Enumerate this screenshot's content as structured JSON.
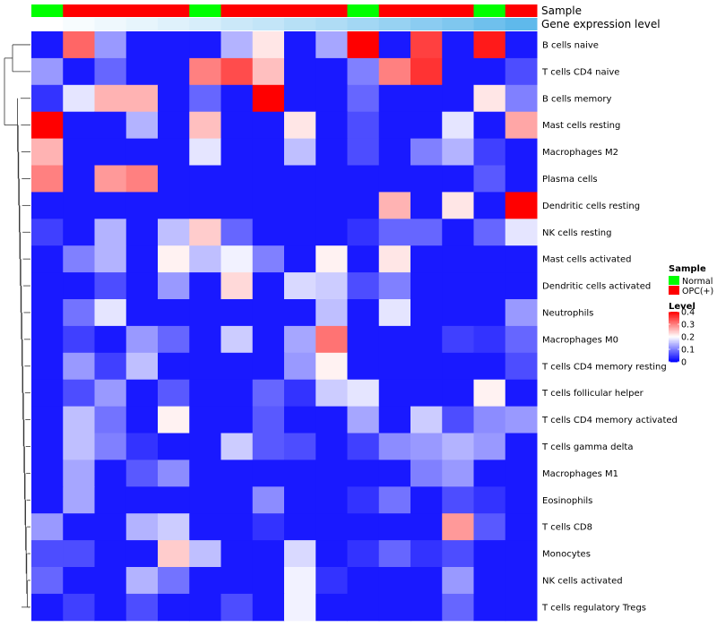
{
  "chart_data": {
    "type": "heatmap",
    "rows": [
      "B cells naive",
      "T cells CD4 naive",
      "B cells memory",
      "Mast cells resting",
      "Macrophages M2",
      "Plasma cells",
      "Dendritic cells resting",
      "NK cells resting",
      "Mast cells activated",
      "Dendritic cells activated",
      "Neutrophils",
      "Macrophages M0",
      "T cells CD4 memory resting",
      "T cells follicular helper",
      "T cells CD4 memory activated",
      "T cells gamma delta",
      "Macrophages M1",
      "Eosinophils",
      "T cells CD8",
      "Monocytes",
      "NK cells activated",
      "T cells regulatory  Tregs"
    ],
    "column_annotations": {
      "Sample": [
        "Normal",
        "OPC(+)",
        "OPC(+)",
        "OPC(+)",
        "OPC(+)",
        "Normal",
        "OPC(+)",
        "OPC(+)",
        "OPC(+)",
        "OPC(+)",
        "Normal",
        "OPC(+)",
        "OPC(+)",
        "OPC(+)",
        "Normal",
        "OPC(+)"
      ],
      "Gene expression level": [
        0,
        0.02,
        0.04,
        0.06,
        0.08,
        0.1,
        0.13,
        0.15,
        0.18,
        0.2,
        0.23,
        0.26,
        0.29,
        0.32,
        0.36,
        0.4
      ]
    },
    "annotation_labels": [
      "Sample",
      "Gene expression level"
    ],
    "values": [
      [
        0.02,
        0.32,
        0.12,
        0.02,
        0.02,
        0.02,
        0.14,
        0.22,
        0.02,
        0.13,
        0.4,
        0.02,
        0.35,
        0.02,
        0.38,
        0.02
      ],
      [
        0.12,
        0.02,
        0.08,
        0.02,
        0.02,
        0.3,
        0.34,
        0.25,
        0.02,
        0.02,
        0.1,
        0.3,
        0.36,
        0.02,
        0.02,
        0.06
      ],
      [
        0.04,
        0.18,
        0.26,
        0.26,
        0.02,
        0.08,
        0.02,
        0.4,
        0.02,
        0.02,
        0.08,
        0.02,
        0.02,
        0.02,
        0.22,
        0.1
      ],
      [
        0.4,
        0.02,
        0.02,
        0.14,
        0.02,
        0.25,
        0.02,
        0.02,
        0.22,
        0.02,
        0.06,
        0.02,
        0.02,
        0.18,
        0.02,
        0.27
      ],
      [
        0.26,
        0.02,
        0.02,
        0.02,
        0.02,
        0.18,
        0.02,
        0.02,
        0.15,
        0.02,
        0.06,
        0.02,
        0.1,
        0.14,
        0.05,
        0.02
      ],
      [
        0.3,
        0.02,
        0.28,
        0.3,
        0.02,
        0.02,
        0.02,
        0.02,
        0.02,
        0.02,
        0.02,
        0.02,
        0.02,
        0.02,
        0.07,
        0.02
      ],
      [
        0.02,
        0.02,
        0.02,
        0.02,
        0.02,
        0.02,
        0.02,
        0.02,
        0.02,
        0.02,
        0.02,
        0.26,
        0.02,
        0.22,
        0.02,
        0.4
      ],
      [
        0.05,
        0.02,
        0.14,
        0.02,
        0.15,
        0.24,
        0.08,
        0.02,
        0.02,
        0.02,
        0.04,
        0.08,
        0.08,
        0.02,
        0.08,
        0.18
      ],
      [
        0.02,
        0.1,
        0.14,
        0.02,
        0.21,
        0.15,
        0.19,
        0.1,
        0.02,
        0.21,
        0.02,
        0.22,
        0.02,
        0.02,
        0.02,
        0.02
      ],
      [
        0.02,
        0.02,
        0.06,
        0.02,
        0.12,
        0.02,
        0.23,
        0.02,
        0.17,
        0.16,
        0.06,
        0.1,
        0.02,
        0.02,
        0.02,
        0.02
      ],
      [
        0.02,
        0.09,
        0.18,
        0.02,
        0.02,
        0.02,
        0.02,
        0.02,
        0.02,
        0.15,
        0.02,
        0.18,
        0.02,
        0.02,
        0.02,
        0.12
      ],
      [
        0.02,
        0.05,
        0.02,
        0.12,
        0.08,
        0.02,
        0.16,
        0.02,
        0.13,
        0.31,
        0.02,
        0.02,
        0.02,
        0.05,
        0.04,
        0.08
      ],
      [
        0.02,
        0.12,
        0.05,
        0.15,
        0.02,
        0.02,
        0.02,
        0.02,
        0.12,
        0.21,
        0.02,
        0.02,
        0.02,
        0.02,
        0.02,
        0.06
      ],
      [
        0.02,
        0.06,
        0.12,
        0.02,
        0.07,
        0.02,
        0.02,
        0.08,
        0.04,
        0.16,
        0.18,
        0.02,
        0.02,
        0.02,
        0.21,
        0.02
      ],
      [
        0.02,
        0.15,
        0.09,
        0.02,
        0.21,
        0.02,
        0.02,
        0.07,
        0.02,
        0.02,
        0.13,
        0.02,
        0.16,
        0.06,
        0.11,
        0.12
      ],
      [
        0.02,
        0.15,
        0.1,
        0.04,
        0.02,
        0.02,
        0.16,
        0.07,
        0.06,
        0.02,
        0.05,
        0.11,
        0.12,
        0.14,
        0.12,
        0.02
      ],
      [
        0.02,
        0.13,
        0.02,
        0.07,
        0.11,
        0.02,
        0.02,
        0.02,
        0.02,
        0.02,
        0.02,
        0.02,
        0.1,
        0.12,
        0.02,
        0.02
      ],
      [
        0.02,
        0.13,
        0.02,
        0.02,
        0.02,
        0.02,
        0.02,
        0.11,
        0.02,
        0.02,
        0.04,
        0.09,
        0.02,
        0.06,
        0.04,
        0.02
      ],
      [
        0.12,
        0.02,
        0.02,
        0.14,
        0.16,
        0.02,
        0.02,
        0.04,
        0.02,
        0.02,
        0.02,
        0.02,
        0.02,
        0.28,
        0.07,
        0.02
      ],
      [
        0.06,
        0.06,
        0.02,
        0.02,
        0.24,
        0.15,
        0.02,
        0.02,
        0.17,
        0.02,
        0.04,
        0.08,
        0.04,
        0.06,
        0.02,
        0.02
      ],
      [
        0.08,
        0.02,
        0.02,
        0.14,
        0.09,
        0.02,
        0.02,
        0.02,
        0.19,
        0.04,
        0.02,
        0.02,
        0.02,
        0.12,
        0.02,
        0.02
      ],
      [
        0.02,
        0.05,
        0.02,
        0.06,
        0.02,
        0.02,
        0.06,
        0.02,
        0.19,
        0.02,
        0.02,
        0.02,
        0.02,
        0.08,
        0.02,
        0.02
      ]
    ],
    "color_scale": {
      "min": 0,
      "mid": 0.2,
      "max": 0.4,
      "low_color": "#0000ff",
      "mid_color": "#ffffff",
      "high_color": "#ff0000"
    },
    "dendrogram": "rows",
    "legends": {
      "sample": {
        "title": "Sample",
        "items": [
          {
            "label": "Normal",
            "color": "#00ff00"
          },
          {
            "label": "OPC(+)",
            "color": "#ff0000"
          }
        ]
      },
      "level": {
        "title": "Level",
        "ticks": [
          {
            "value": 0.4,
            "label": "0.4"
          },
          {
            "value": 0.3,
            "label": "0.3"
          },
          {
            "value": 0.2,
            "label": "0.2"
          },
          {
            "value": 0.1,
            "label": "0.1"
          },
          {
            "value": 0,
            "label": "0"
          }
        ]
      }
    },
    "legend_placement": "right"
  }
}
